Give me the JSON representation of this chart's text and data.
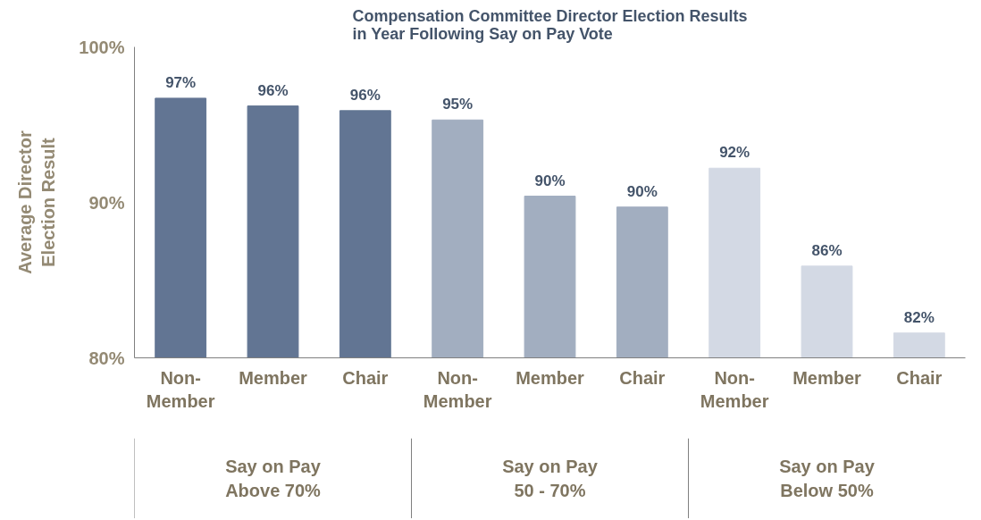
{
  "chart_data": {
    "type": "bar",
    "title": "Compensation Committee Director Election Results\nin Year Following Say on Pay Vote",
    "ylabel": "Average Director\nElection Result",
    "categories": [
      "Non-\nMember",
      "Member",
      "Chair",
      "Non-\nMember",
      "Member",
      "Chair",
      "Non-\nMember",
      "Member",
      "Chair"
    ],
    "values": [
      96.7,
      96.2,
      95.9,
      95.3,
      90.4,
      89.7,
      92.2,
      85.9,
      81.6
    ],
    "value_labels": [
      "97%",
      "96%",
      "96%",
      "95%",
      "90%",
      "90%",
      "92%",
      "86%",
      "82%"
    ],
    "colors": [
      "#627593",
      "#627593",
      "#627593",
      "#a2aec0",
      "#a2aec0",
      "#a2aec0",
      "#d3d9e4",
      "#d3d9e4",
      "#d3d9e4"
    ],
    "ylim": [
      80,
      100
    ],
    "yticks": [
      {
        "value": 80,
        "label": "80%"
      },
      {
        "value": 90,
        "label": "90%"
      },
      {
        "value": 100,
        "label": "100%"
      }
    ],
    "annotations": [
      "Say on Pay\nAbove 70%",
      "Say on Pay\n50 - 70%",
      "Say on Pay\nBelow 50%"
    ],
    "grid": false
  }
}
